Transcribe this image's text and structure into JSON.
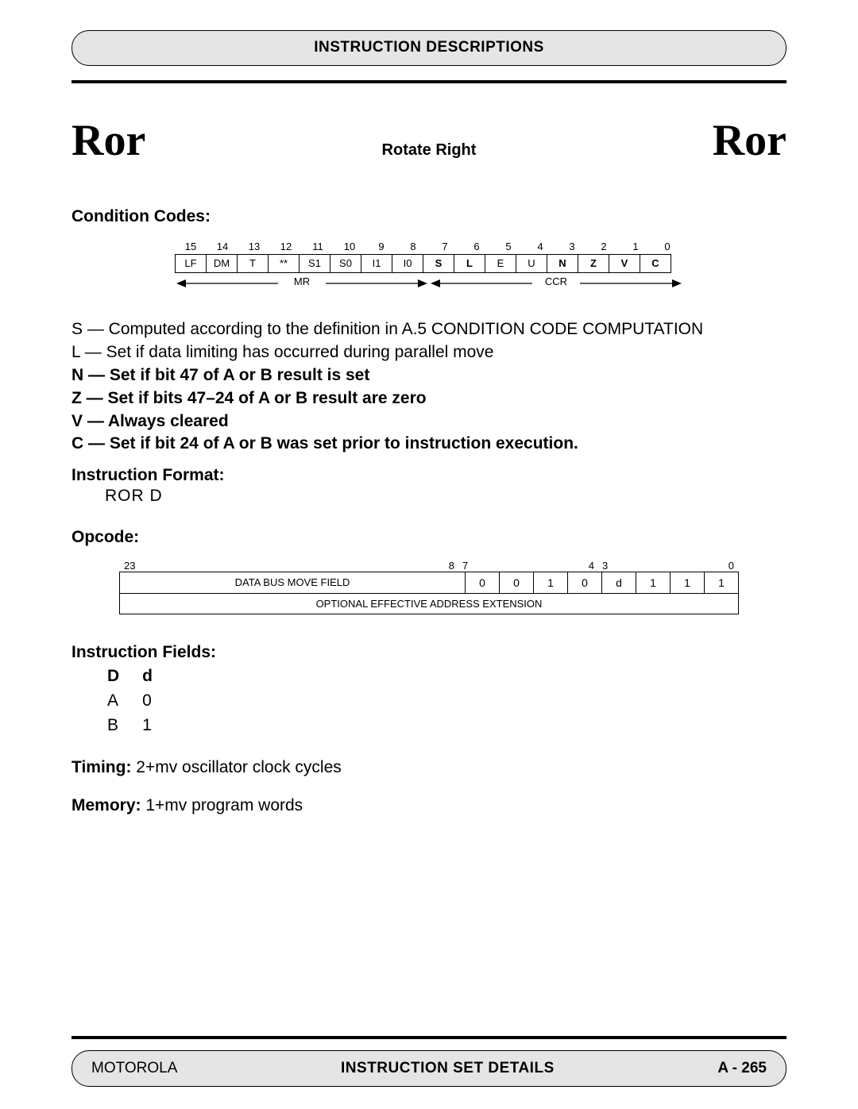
{
  "header": {
    "title": "INSTRUCTION DESCRIPTIONS"
  },
  "title": {
    "mnemonic_left": "Ror",
    "operation_name": "Rotate Right",
    "mnemonic_right": "Ror"
  },
  "cc": {
    "section": "Condition Codes:",
    "bit_numbers": [
      "15",
      "14",
      "13",
      "12",
      "11",
      "10",
      "9",
      "8",
      "7",
      "6",
      "5",
      "4",
      "3",
      "2",
      "1",
      "0"
    ],
    "cells": [
      {
        "t": "LF",
        "b": false
      },
      {
        "t": "DM",
        "b": false
      },
      {
        "t": "T",
        "b": false
      },
      {
        "t": "**",
        "b": false
      },
      {
        "t": "S1",
        "b": false
      },
      {
        "t": "S0",
        "b": false
      },
      {
        "t": "I1",
        "b": false
      },
      {
        "t": "I0",
        "b": false
      },
      {
        "t": "S",
        "b": true
      },
      {
        "t": "L",
        "b": true
      },
      {
        "t": "E",
        "b": false
      },
      {
        "t": "U",
        "b": false
      },
      {
        "t": "N",
        "b": true
      },
      {
        "t": "Z",
        "b": true
      },
      {
        "t": "V",
        "b": true
      },
      {
        "t": "C",
        "b": true
      }
    ],
    "lower_left_label": "MR",
    "lower_right_label": "CCR"
  },
  "desc": {
    "lines": [
      {
        "text": "S — Computed according to the definition in A.5 CONDITION CODE COMPUTATION",
        "bold": false
      },
      {
        "text": "L — Set if data limiting has occurred during parallel move",
        "bold": false
      },
      {
        "text": "N — Set if bit 47 of A or B result is set",
        "bold": true
      },
      {
        "text": "Z — Set if bits 47–24 of A or B result are zero",
        "bold": true
      },
      {
        "text": "V — Always cleared",
        "bold": true
      },
      {
        "text": "C — Set if bit 24 of A or B was set prior to instruction execution.",
        "bold": true
      }
    ]
  },
  "instr_format": {
    "title": "Instruction Format:",
    "body": "ROR   D"
  },
  "opcode": {
    "title": "Opcode:",
    "top_bits": {
      "b23": "23",
      "b8": "8",
      "b7": "7",
      "b4": "4",
      "b3": "3",
      "b0": "0"
    },
    "dbmf": "DATA BUS MOVE FIELD",
    "bits": [
      "0",
      "0",
      "1",
      "0",
      "d",
      "1",
      "1",
      "1"
    ],
    "ext": "OPTIONAL EFFECTIVE ADDRESS EXTENSION"
  },
  "fields": {
    "title": "Instruction Fields:",
    "header": [
      "D",
      "d"
    ],
    "rows": [
      [
        "A",
        "0"
      ],
      [
        "B",
        "1"
      ]
    ]
  },
  "timing": {
    "label": "Timing:",
    "value": " 2+mv oscillator clock cycles"
  },
  "memory": {
    "label": "Memory:",
    "value": " 1+mv program words"
  },
  "footer": {
    "left": "MOTOROLA",
    "center": "INSTRUCTION SET DETAILS",
    "right": "A - 265"
  }
}
